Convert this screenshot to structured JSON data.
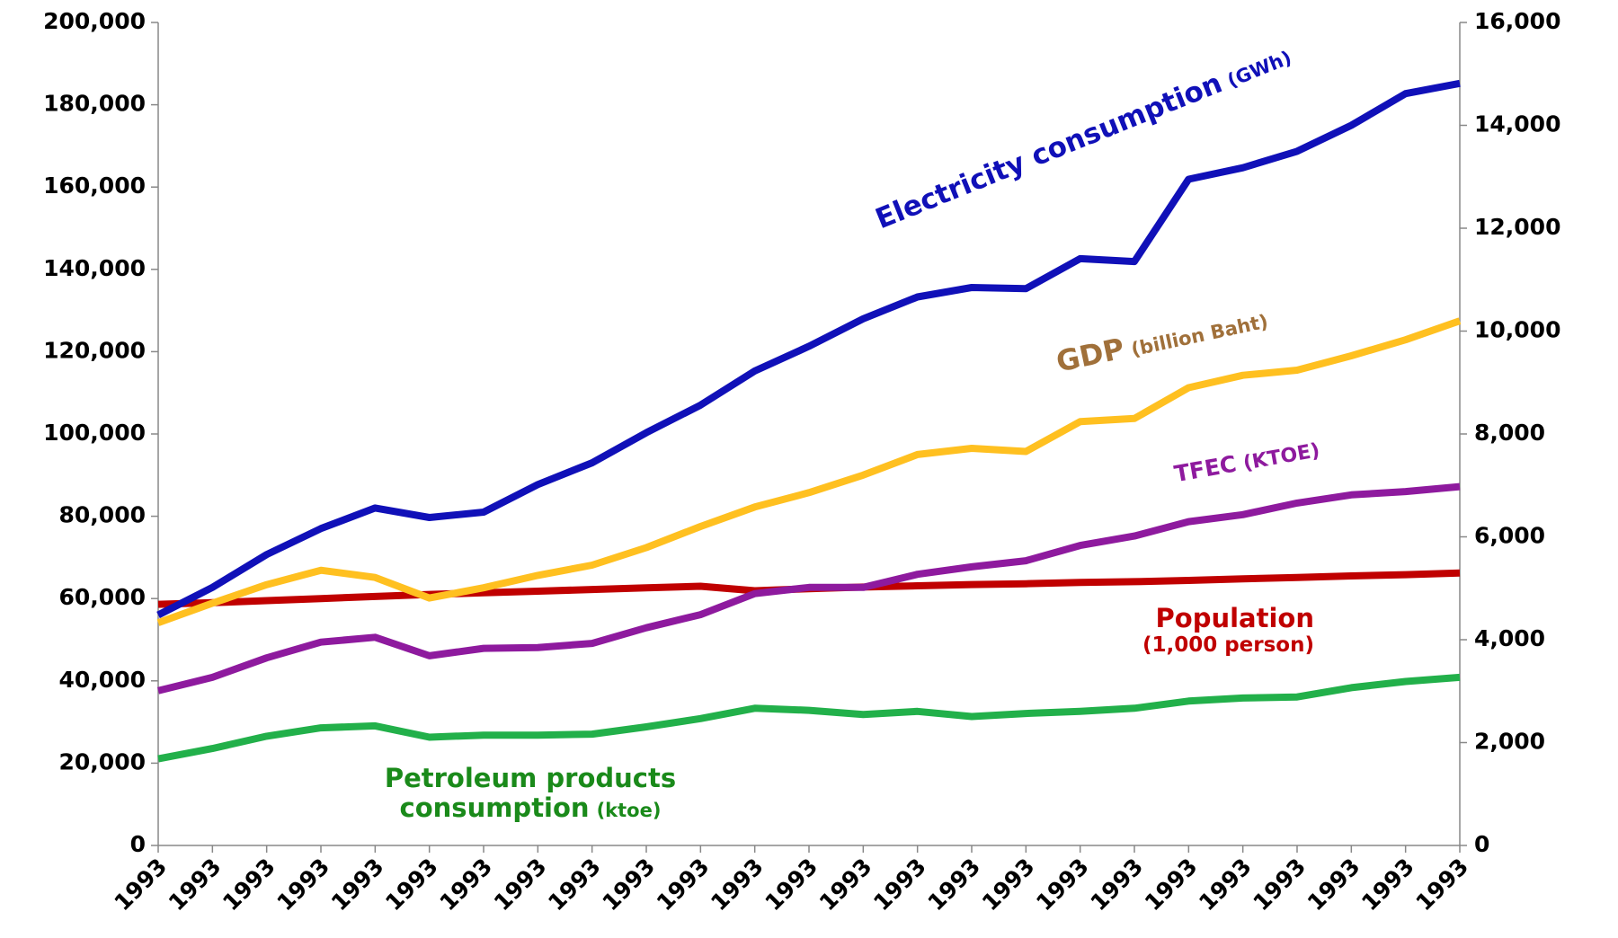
{
  "chart_data": {
    "type": "line",
    "categories": [
      "1993",
      "1993",
      "1993",
      "1993",
      "1993",
      "1993",
      "1993",
      "1993",
      "1993",
      "1993",
      "1993",
      "1993",
      "1993",
      "1993",
      "1993",
      "1993",
      "1993",
      "1993",
      "1993",
      "1993",
      "1993",
      "1993",
      "1993",
      "1993",
      "1993"
    ],
    "ylim": [
      0,
      200000
    ],
    "yticks": [
      0,
      {
        "value": 20000,
        "label": "20,000"
      },
      {
        "value": 40000,
        "label": "40,000"
      },
      {
        "value": 60000,
        "label": "60,000"
      },
      {
        "value": 80000,
        "label": "80,000"
      },
      {
        "value": 100000,
        "label": "100,000"
      },
      {
        "value": 120000,
        "label": "120,000"
      },
      {
        "value": 140000,
        "label": "140,000"
      },
      {
        "value": 160000,
        "label": "160,000"
      },
      {
        "value": 180000,
        "label": "180,000"
      },
      {
        "value": 200000,
        "label": "200,000"
      }
    ],
    "y2lim": [
      0,
      16000
    ],
    "y2ticks": [
      0,
      {
        "value": 2000,
        "label": "2,000"
      },
      {
        "value": 4000,
        "label": "4,000"
      },
      {
        "value": 6000,
        "label": "6,000"
      },
      {
        "value": 8000,
        "label": "8,000"
      },
      {
        "value": 10000,
        "label": "10,000"
      },
      {
        "value": 12000,
        "label": "12,000"
      },
      {
        "value": 14000,
        "label": "14,000"
      },
      {
        "value": 16000,
        "label": "16,000"
      }
    ],
    "series": [
      {
        "name": "Electricity consumption",
        "unit": "(GWh)",
        "color": "#1010b8",
        "label_color": "#1010b8",
        "axis": "y",
        "values": [
          56000,
          62700,
          70700,
          77000,
          82000,
          79700,
          81000,
          87700,
          93000,
          100300,
          107000,
          115300,
          121300,
          128000,
          133300,
          135600,
          135300,
          142600,
          141900,
          161900,
          164700,
          168700,
          175000,
          182700,
          185200
        ]
      },
      {
        "name": "GDP",
        "unit": "(billion Baht)",
        "color": "#ffc020",
        "label_color": "#a0703a",
        "axis": "y2",
        "values": [
          4330,
          4710,
          5070,
          5350,
          5210,
          4810,
          5010,
          5250,
          5450,
          5790,
          6200,
          6580,
          6860,
          7200,
          7600,
          7720,
          7660,
          8240,
          8300,
          8900,
          9140,
          9240,
          9520,
          9830,
          10200
        ]
      },
      {
        "name": "TFEC",
        "unit": "(KTOE)",
        "color": "#8e1a9e",
        "label_color": "#8e1a9e",
        "axis": "y",
        "values": [
          37600,
          40850,
          45600,
          49400,
          50600,
          46100,
          47900,
          48100,
          49100,
          52900,
          56100,
          61200,
          62700,
          62700,
          65900,
          67700,
          69200,
          72900,
          75200,
          78700,
          80400,
          83200,
          85200,
          86000,
          87200
        ]
      },
      {
        "name": "Population",
        "unit": "(1,000 person)",
        "color": "#c00000",
        "label_color": "#c00000",
        "axis": "y",
        "values": [
          58600,
          59000,
          59500,
          60000,
          60500,
          61000,
          61400,
          61800,
          62200,
          62600,
          63000,
          61900,
          62400,
          62800,
          63100,
          63400,
          63600,
          63900,
          64100,
          64400,
          64800,
          65100,
          65500,
          65800,
          66200
        ]
      },
      {
        "name": "Petroleum products consumption",
        "unit": "(ktoe)",
        "color": "#22b04a",
        "label_color": "#1a8a1a",
        "axis": "y",
        "values": [
          21050,
          23560,
          26560,
          28570,
          29070,
          26310,
          26810,
          26810,
          27060,
          28820,
          30820,
          33330,
          32830,
          31830,
          32580,
          31330,
          32080,
          32580,
          33330,
          35080,
          35840,
          36090,
          38340,
          39840,
          40850
        ]
      }
    ]
  }
}
